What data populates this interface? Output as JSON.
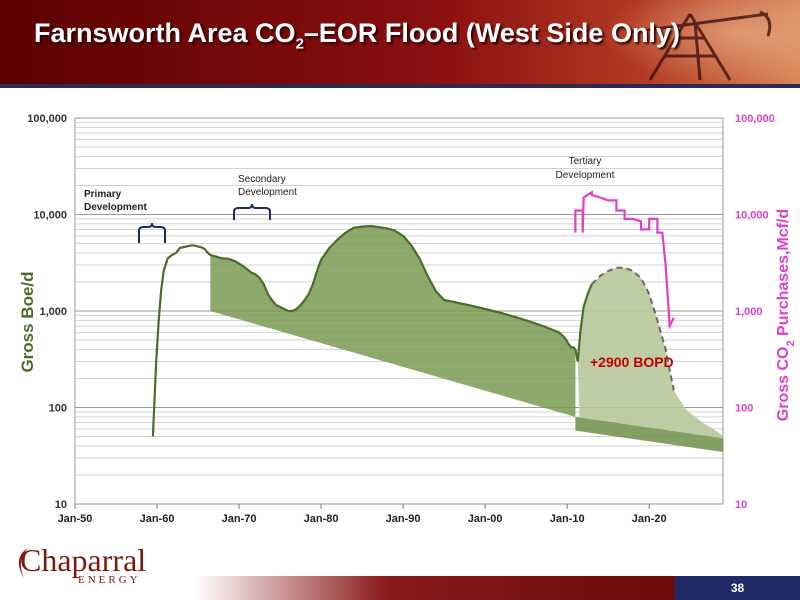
{
  "slide": {
    "title_before": "Farnsworth Area CO",
    "title_sub": "2",
    "title_after": "–EOR Flood (West Side Only)",
    "page_number": "38",
    "logo_main": "Chaparral",
    "logo_sub": "ENERGY"
  },
  "chart_data": {
    "type": "area",
    "title": "",
    "xlabel": "",
    "ylabel_left": "Gross Boe/d",
    "ylabel_right_parts": [
      "Gross CO",
      "2",
      " Purchases,Mcf/d"
    ],
    "y_scale": "log",
    "ylim": [
      10,
      100000
    ],
    "y_ticks": [
      "10",
      "100",
      "1,000",
      "10,000",
      "100,000"
    ],
    "x_ticks": [
      "Jan-50",
      "Jan-60",
      "Jan-70",
      "Jan-80",
      "Jan-90",
      "Jan-00",
      "Jan-10",
      "Jan-20"
    ],
    "x_range_years": [
      1950,
      2029
    ],
    "grid": true,
    "annotations": {
      "primary": [
        "Primary",
        "Development"
      ],
      "secondary": [
        "Secondary",
        "Development"
      ],
      "tertiary": [
        "Tertiary",
        "Development"
      ],
      "increment": "+2900 BOPD"
    },
    "colors": {
      "oil": "#4d6b2a",
      "secondary_fill": "#7a9a52",
      "tertiary_fill": "#b8c89a",
      "co2": "#e040c8",
      "increment_text": "#c00000",
      "forecast_dash": "#6a6a6a"
    },
    "series": [
      {
        "key": "oil",
        "x": [
          1959.5,
          1959.9,
          1960.2,
          1960.5,
          1960.8,
          1961.3,
          1961.8,
          1962.3,
          1962.8,
          1963.3,
          1963.8,
          1964.3,
          1964.8,
          1965.3,
          1965.8,
          1966.2,
          1966.5,
          1967.0,
          1967.5,
          1968.0,
          1968.5,
          1969.0,
          1969.5,
          1970.0,
          1970.5,
          1971.0,
          1971.5,
          1972.0,
          1972.5,
          1973.0,
          1973.5,
          1974.0,
          1974.5,
          1975.0,
          1975.5,
          1976.0,
          1976.5,
          1977.0,
          1977.5,
          1978.0,
          1978.5,
          1979.0,
          1979.5,
          1980.0,
          1981.0,
          1982.0,
          1983.0,
          1984.0,
          1985.0,
          1986.0,
          1987.0,
          1988.0,
          1989.0,
          1990.0,
          1991.0,
          1992.0,
          1993.0,
          1994.0,
          1995.0,
          1996.0,
          1997.0,
          1998.0,
          1999.0,
          2000.0,
          2001.0,
          2002.0,
          2003.0,
          2004.0,
          2005.0,
          2006.0,
          2007.0,
          2008.0,
          2009.0,
          2009.5,
          2009.9,
          2010.2,
          2010.5,
          2010.8,
          2011.0,
          2011.3
        ],
        "y": [
          50,
          300,
          800,
          1600,
          2600,
          3500,
          3800,
          4000,
          4500,
          4600,
          4700,
          4800,
          4700,
          4600,
          4400,
          4000,
          3800,
          3700,
          3600,
          3500,
          3500,
          3400,
          3300,
          3100,
          2900,
          2700,
          2500,
          2400,
          2200,
          1900,
          1500,
          1300,
          1150,
          1100,
          1050,
          1000,
          1000,
          1050,
          1150,
          1300,
          1500,
          1900,
          2600,
          3400,
          4500,
          5500,
          6500,
          7300,
          7500,
          7600,
          7400,
          7200,
          6800,
          6000,
          4800,
          3500,
          2300,
          1600,
          1300,
          1250,
          1200,
          1150,
          1100,
          1050,
          1000,
          950,
          900,
          850,
          800,
          750,
          700,
          650,
          600,
          550,
          500,
          450,
          420,
          420,
          400,
          300
        ]
      },
      {
        "key": "oil_tertiary",
        "x": [
          2011.3,
          2011.6,
          2012.0,
          2012.5,
          2013.0,
          2014.0,
          2015.0,
          2016.0,
          2017.0,
          2018.0,
          2019.0,
          2020.0,
          2021.0,
          2022.0,
          2023.0
        ],
        "y": [
          300,
          600,
          1100,
          1500,
          1900,
          2300,
          2600,
          2800,
          2800,
          2600,
          2200,
          1500,
          800,
          400,
          150
        ]
      },
      {
        "key": "co2",
        "x": [
          2011.0,
          2011.0,
          2011.9,
          2011.9,
          2012.0,
          2013.0,
          2013.0,
          2014.0,
          2015.0,
          2016.0,
          2016.0,
          2017.0,
          2017.0,
          2018.0,
          2019.0,
          2019.0,
          2020.0,
          2020.0,
          2021.0,
          2021.0,
          2021.6,
          2022.0,
          2022.5,
          2023.0
        ],
        "y": [
          6500,
          11000,
          11000,
          6500,
          15000,
          17000,
          16000,
          15000,
          14000,
          14000,
          11000,
          11000,
          9000,
          9000,
          8500,
          7000,
          7000,
          9000,
          9000,
          6500,
          6500,
          3000,
          700,
          850
        ]
      }
    ]
  }
}
